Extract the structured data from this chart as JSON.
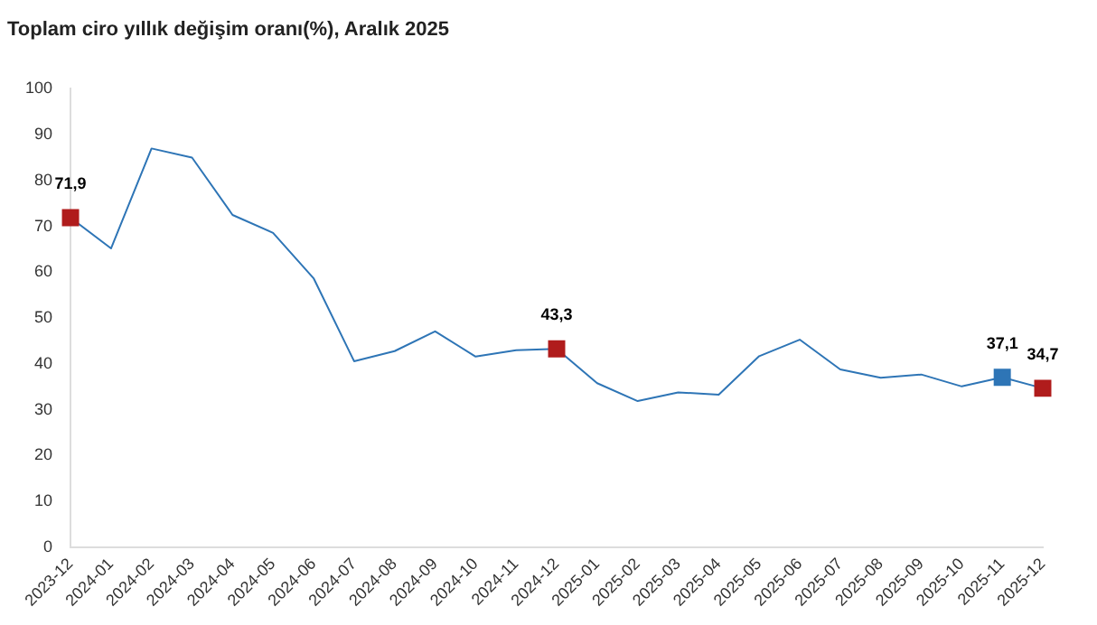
{
  "chart_data": {
    "type": "line",
    "title": "Toplam ciro yıllık değişim oranı(%), Aralık 2025",
    "categories": [
      "2023-12",
      "2024-01",
      "2024-02",
      "2024-03",
      "2024-04",
      "2024-05",
      "2024-06",
      "2024-07",
      "2024-08",
      "2024-09",
      "2024-10",
      "2024-11",
      "2024-12",
      "2025-01",
      "2025-02",
      "2025-03",
      "2025-04",
      "2025-05",
      "2025-06",
      "2025-07",
      "2025-08",
      "2025-09",
      "2025-10",
      "2025-11",
      "2025-12"
    ],
    "series": [
      {
        "color": "#2e75b6",
        "marker": "none",
        "values": [
          71.9,
          65.2,
          87,
          85,
          72.5,
          68.6,
          58.7,
          40.6,
          42.8,
          47.1,
          41.6,
          43,
          43.3,
          35.8,
          31.9,
          33.8,
          33.3,
          41.7,
          45.3,
          38.8,
          37,
          37.7,
          35.1,
          37.1,
          34.7
        ]
      },
      {
        "type": "scatter",
        "marker": "square",
        "values": [
          71.9,
          null,
          null,
          null,
          null,
          null,
          null,
          null,
          null,
          null,
          null,
          null,
          43.3,
          null,
          null,
          null,
          null,
          null,
          null,
          null,
          null,
          null,
          null,
          37.1,
          34.7
        ],
        "colors": [
          "#b01c1c",
          null,
          null,
          null,
          null,
          null,
          null,
          null,
          null,
          null,
          null,
          null,
          "#b01c1c",
          null,
          null,
          null,
          null,
          null,
          null,
          null,
          null,
          null,
          null,
          "#2e75b6",
          "#b01c1c"
        ],
        "value_labels": [
          "71,9",
          null,
          null,
          null,
          null,
          null,
          null,
          null,
          null,
          null,
          null,
          null,
          "43,3",
          null,
          null,
          null,
          null,
          null,
          null,
          null,
          null,
          null,
          null,
          "37,1",
          "34,7"
        ]
      }
    ],
    "ylim": [
      0,
      100
    ],
    "yticks": [
      0,
      10,
      20,
      30,
      40,
      50,
      60,
      70,
      80,
      90,
      100
    ],
    "grid": false,
    "legend": false
  }
}
